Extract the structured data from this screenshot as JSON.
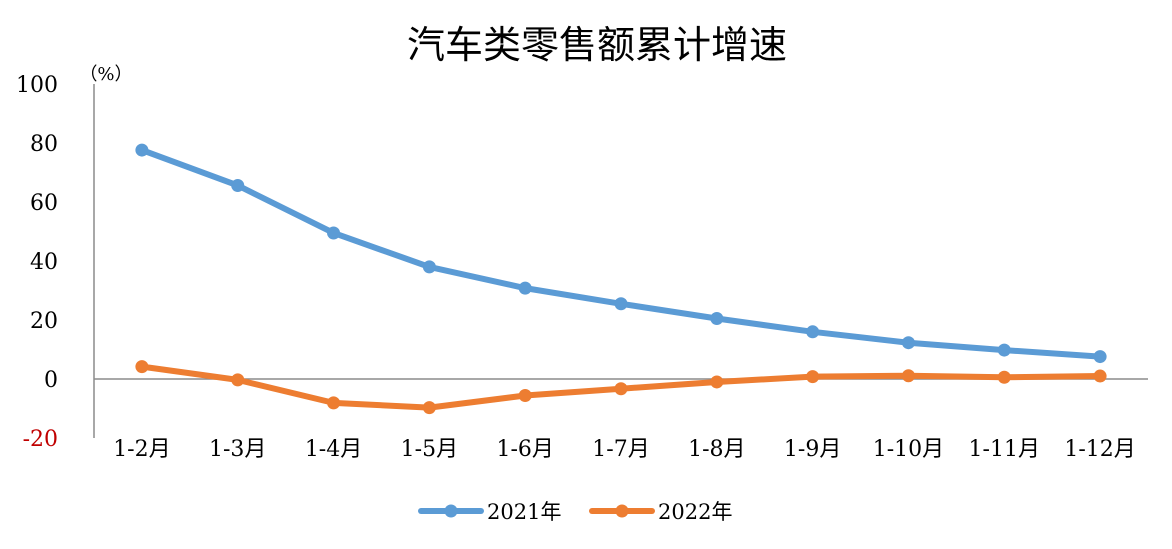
{
  "chart_data": {
    "type": "line",
    "title": "汽车类零售额累计增速",
    "unit_label": "（%）",
    "xlabel": "",
    "ylabel": "",
    "ylim": [
      -20,
      100
    ],
    "yticks": [
      "100",
      "80",
      "60",
      "40",
      "20",
      "0",
      "-20"
    ],
    "negative_tick_color": "#c00000",
    "grid": false,
    "legend_position": "bottom-center",
    "categories": [
      "1-2月",
      "1-3月",
      "1-4月",
      "1-5月",
      "1-6月",
      "1-7月",
      "1-8月",
      "1-9月",
      "1-10月",
      "1-11月",
      "1-12月"
    ],
    "series": [
      {
        "name": "2021年",
        "color": "#5b9bd5",
        "values": [
          77.6,
          65.6,
          49.5,
          38.0,
          30.8,
          25.5,
          20.5,
          16.0,
          12.3,
          9.8,
          7.6
        ]
      },
      {
        "name": "2022年",
        "color": "#ed7d31",
        "values": [
          4.2,
          -0.3,
          -8.1,
          -9.7,
          -5.6,
          -3.3,
          -1.0,
          0.8,
          1.1,
          0.6,
          1.0
        ]
      }
    ]
  }
}
